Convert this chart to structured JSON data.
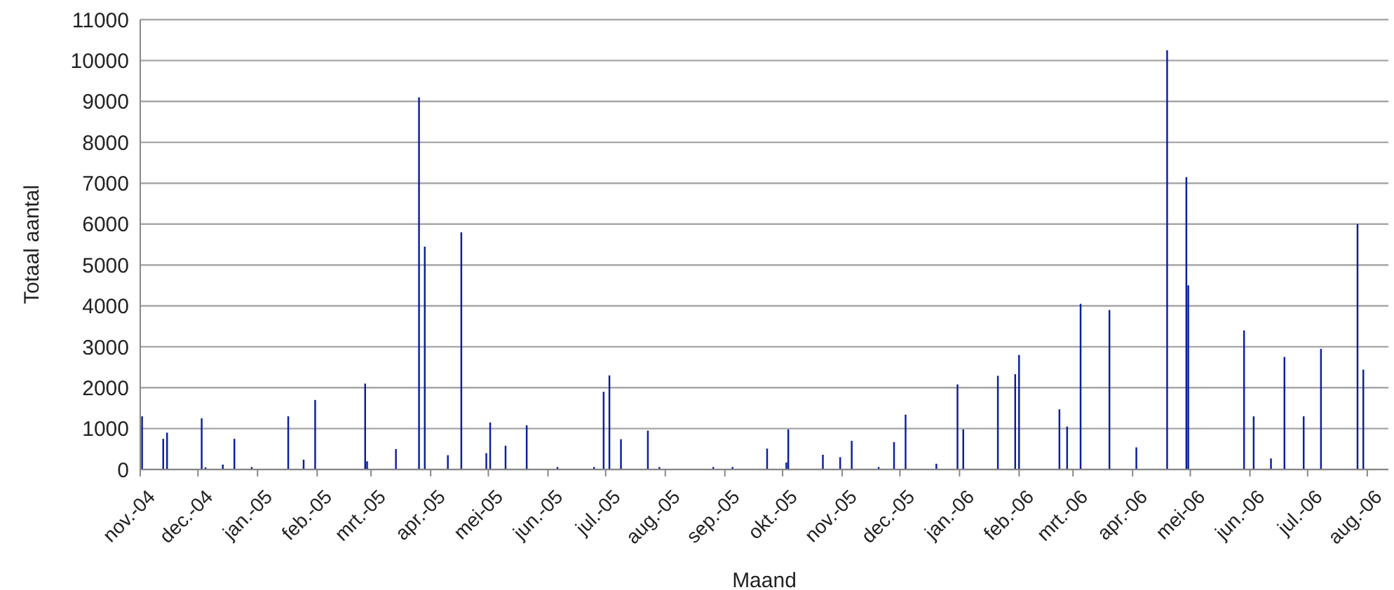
{
  "chart_data": {
    "type": "bar",
    "xlabel": "Maand",
    "ylabel": "Totaal aantal",
    "color": "#0a1f9e",
    "grid": "y",
    "legend": false,
    "x": [
      "2004-11-02",
      "2004-11-13",
      "2004-11-15",
      "2004-12-03",
      "2004-12-05",
      "2004-12-14",
      "2004-12-20",
      "2004-12-29",
      "2005-01-17",
      "2005-01-25",
      "2005-01-31",
      "2005-02-26",
      "2005-02-27",
      "2005-03-14",
      "2005-03-26",
      "2005-03-29",
      "2005-04-10",
      "2005-04-17",
      "2005-04-30",
      "2005-05-02",
      "2005-05-10",
      "2005-05-21",
      "2005-06-06",
      "2005-06-25",
      "2005-06-30",
      "2005-07-03",
      "2005-07-09",
      "2005-07-23",
      "2005-07-29",
      "2005-08-26",
      "2005-09-05",
      "2005-09-23",
      "2005-10-03",
      "2005-10-04",
      "2005-10-22",
      "2005-10-31",
      "2005-11-06",
      "2005-11-20",
      "2005-11-28",
      "2005-12-04",
      "2005-12-20",
      "2005-12-31",
      "2006-01-03",
      "2006-01-21",
      "2006-01-30",
      "2006-02-01",
      "2006-02-22",
      "2006-02-26",
      "2006-03-05",
      "2006-03-20",
      "2006-04-03",
      "2006-04-19",
      "2006-04-29",
      "2006-04-30",
      "2006-05-29",
      "2006-06-03",
      "2006-06-12",
      "2006-06-19",
      "2006-06-29",
      "2006-07-08",
      "2006-07-27",
      "2006-07-30"
    ],
    "values": [
      1300,
      750,
      900,
      1250,
      50,
      120,
      750,
      60,
      1300,
      240,
      1700,
      2100,
      200,
      500,
      9100,
      5450,
      350,
      5800,
      400,
      1150,
      580,
      1080,
      60,
      60,
      1900,
      2300,
      740,
      950,
      60,
      60,
      60,
      510,
      170,
      980,
      360,
      300,
      700,
      60,
      670,
      1340,
      140,
      2080,
      980,
      2290,
      2330,
      2800,
      1470,
      1050,
      4050,
      3900,
      540,
      10250,
      7150,
      4500,
      3400,
      1300,
      270,
      2750,
      1300,
      2950,
      6000,
      2440
    ],
    "xlim": [
      "2004-11-01",
      "2006-08-12"
    ],
    "xticks": [
      {
        "value": "2004-11-01",
        "label": "nov.-04"
      },
      {
        "value": "2004-12-01",
        "label": "dec.-04"
      },
      {
        "value": "2005-01-01",
        "label": "jan.-05"
      },
      {
        "value": "2005-02-01",
        "label": "feb.-05"
      },
      {
        "value": "2005-03-01",
        "label": "mrt.-05"
      },
      {
        "value": "2005-04-01",
        "label": "apr.-05"
      },
      {
        "value": "2005-05-01",
        "label": "mei-05"
      },
      {
        "value": "2005-06-01",
        "label": "jun.-05"
      },
      {
        "value": "2005-07-01",
        "label": "jul.-05"
      },
      {
        "value": "2005-08-01",
        "label": "aug.-05"
      },
      {
        "value": "2005-09-01",
        "label": "sep.-05"
      },
      {
        "value": "2005-10-01",
        "label": "okt.-05"
      },
      {
        "value": "2005-11-01",
        "label": "nov.-05"
      },
      {
        "value": "2005-12-01",
        "label": "dec.-05"
      },
      {
        "value": "2006-01-01",
        "label": "jan.-06"
      },
      {
        "value": "2006-02-01",
        "label": "feb.-06"
      },
      {
        "value": "2006-03-01",
        "label": "mrt.-06"
      },
      {
        "value": "2006-04-01",
        "label": "apr.-06"
      },
      {
        "value": "2006-05-01",
        "label": "mei-06"
      },
      {
        "value": "2006-06-01",
        "label": "jun.-06"
      },
      {
        "value": "2006-07-01",
        "label": "jul.-06"
      },
      {
        "value": "2006-08-01",
        "label": "aug.-06"
      }
    ],
    "ylim": [
      0,
      11000
    ],
    "yticks": [
      0,
      1000,
      2000,
      3000,
      4000,
      5000,
      6000,
      7000,
      8000,
      9000,
      10000,
      11000
    ]
  }
}
